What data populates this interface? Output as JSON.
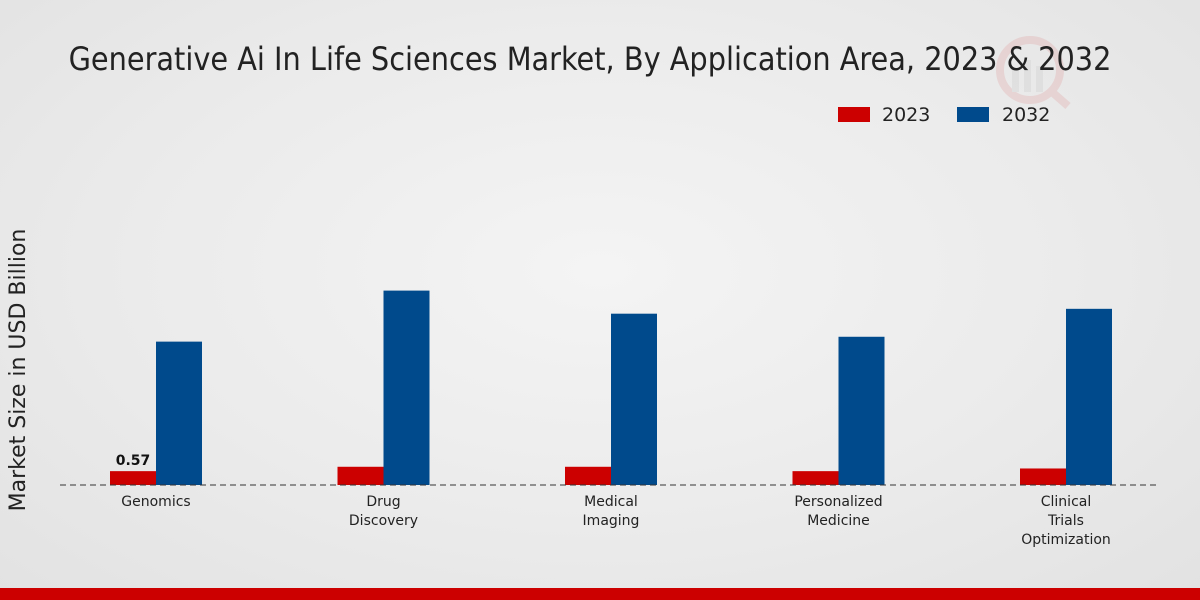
{
  "chart_data": {
    "type": "bar",
    "title": "Generative Ai In Life Sciences Market, By Application Area, 2023 & 2032",
    "xlabel": "",
    "ylabel": "Market Size in USD Billion",
    "categories": [
      [
        "Genomics"
      ],
      [
        "Drug",
        "Discovery"
      ],
      [
        "Medical",
        "Imaging"
      ],
      [
        "Personalized",
        "Medicine"
      ],
      [
        "Clinical",
        "Trials",
        "Optimization"
      ]
    ],
    "series": [
      {
        "name": "2023",
        "color": "#cc0000",
        "values": [
          0.57,
          0.75,
          0.75,
          0.57,
          0.68
        ]
      },
      {
        "name": "2032",
        "color": "#004a8c",
        "values": [
          5.9,
          8.0,
          7.05,
          6.1,
          7.25
        ]
      }
    ],
    "data_labels": [
      {
        "series": 0,
        "index": 0,
        "text": "0.57"
      }
    ],
    "ylim": [
      0,
      12
    ],
    "grid": false,
    "legend_position": "top-right"
  },
  "footer": {
    "bar_color": "#cc0000"
  }
}
